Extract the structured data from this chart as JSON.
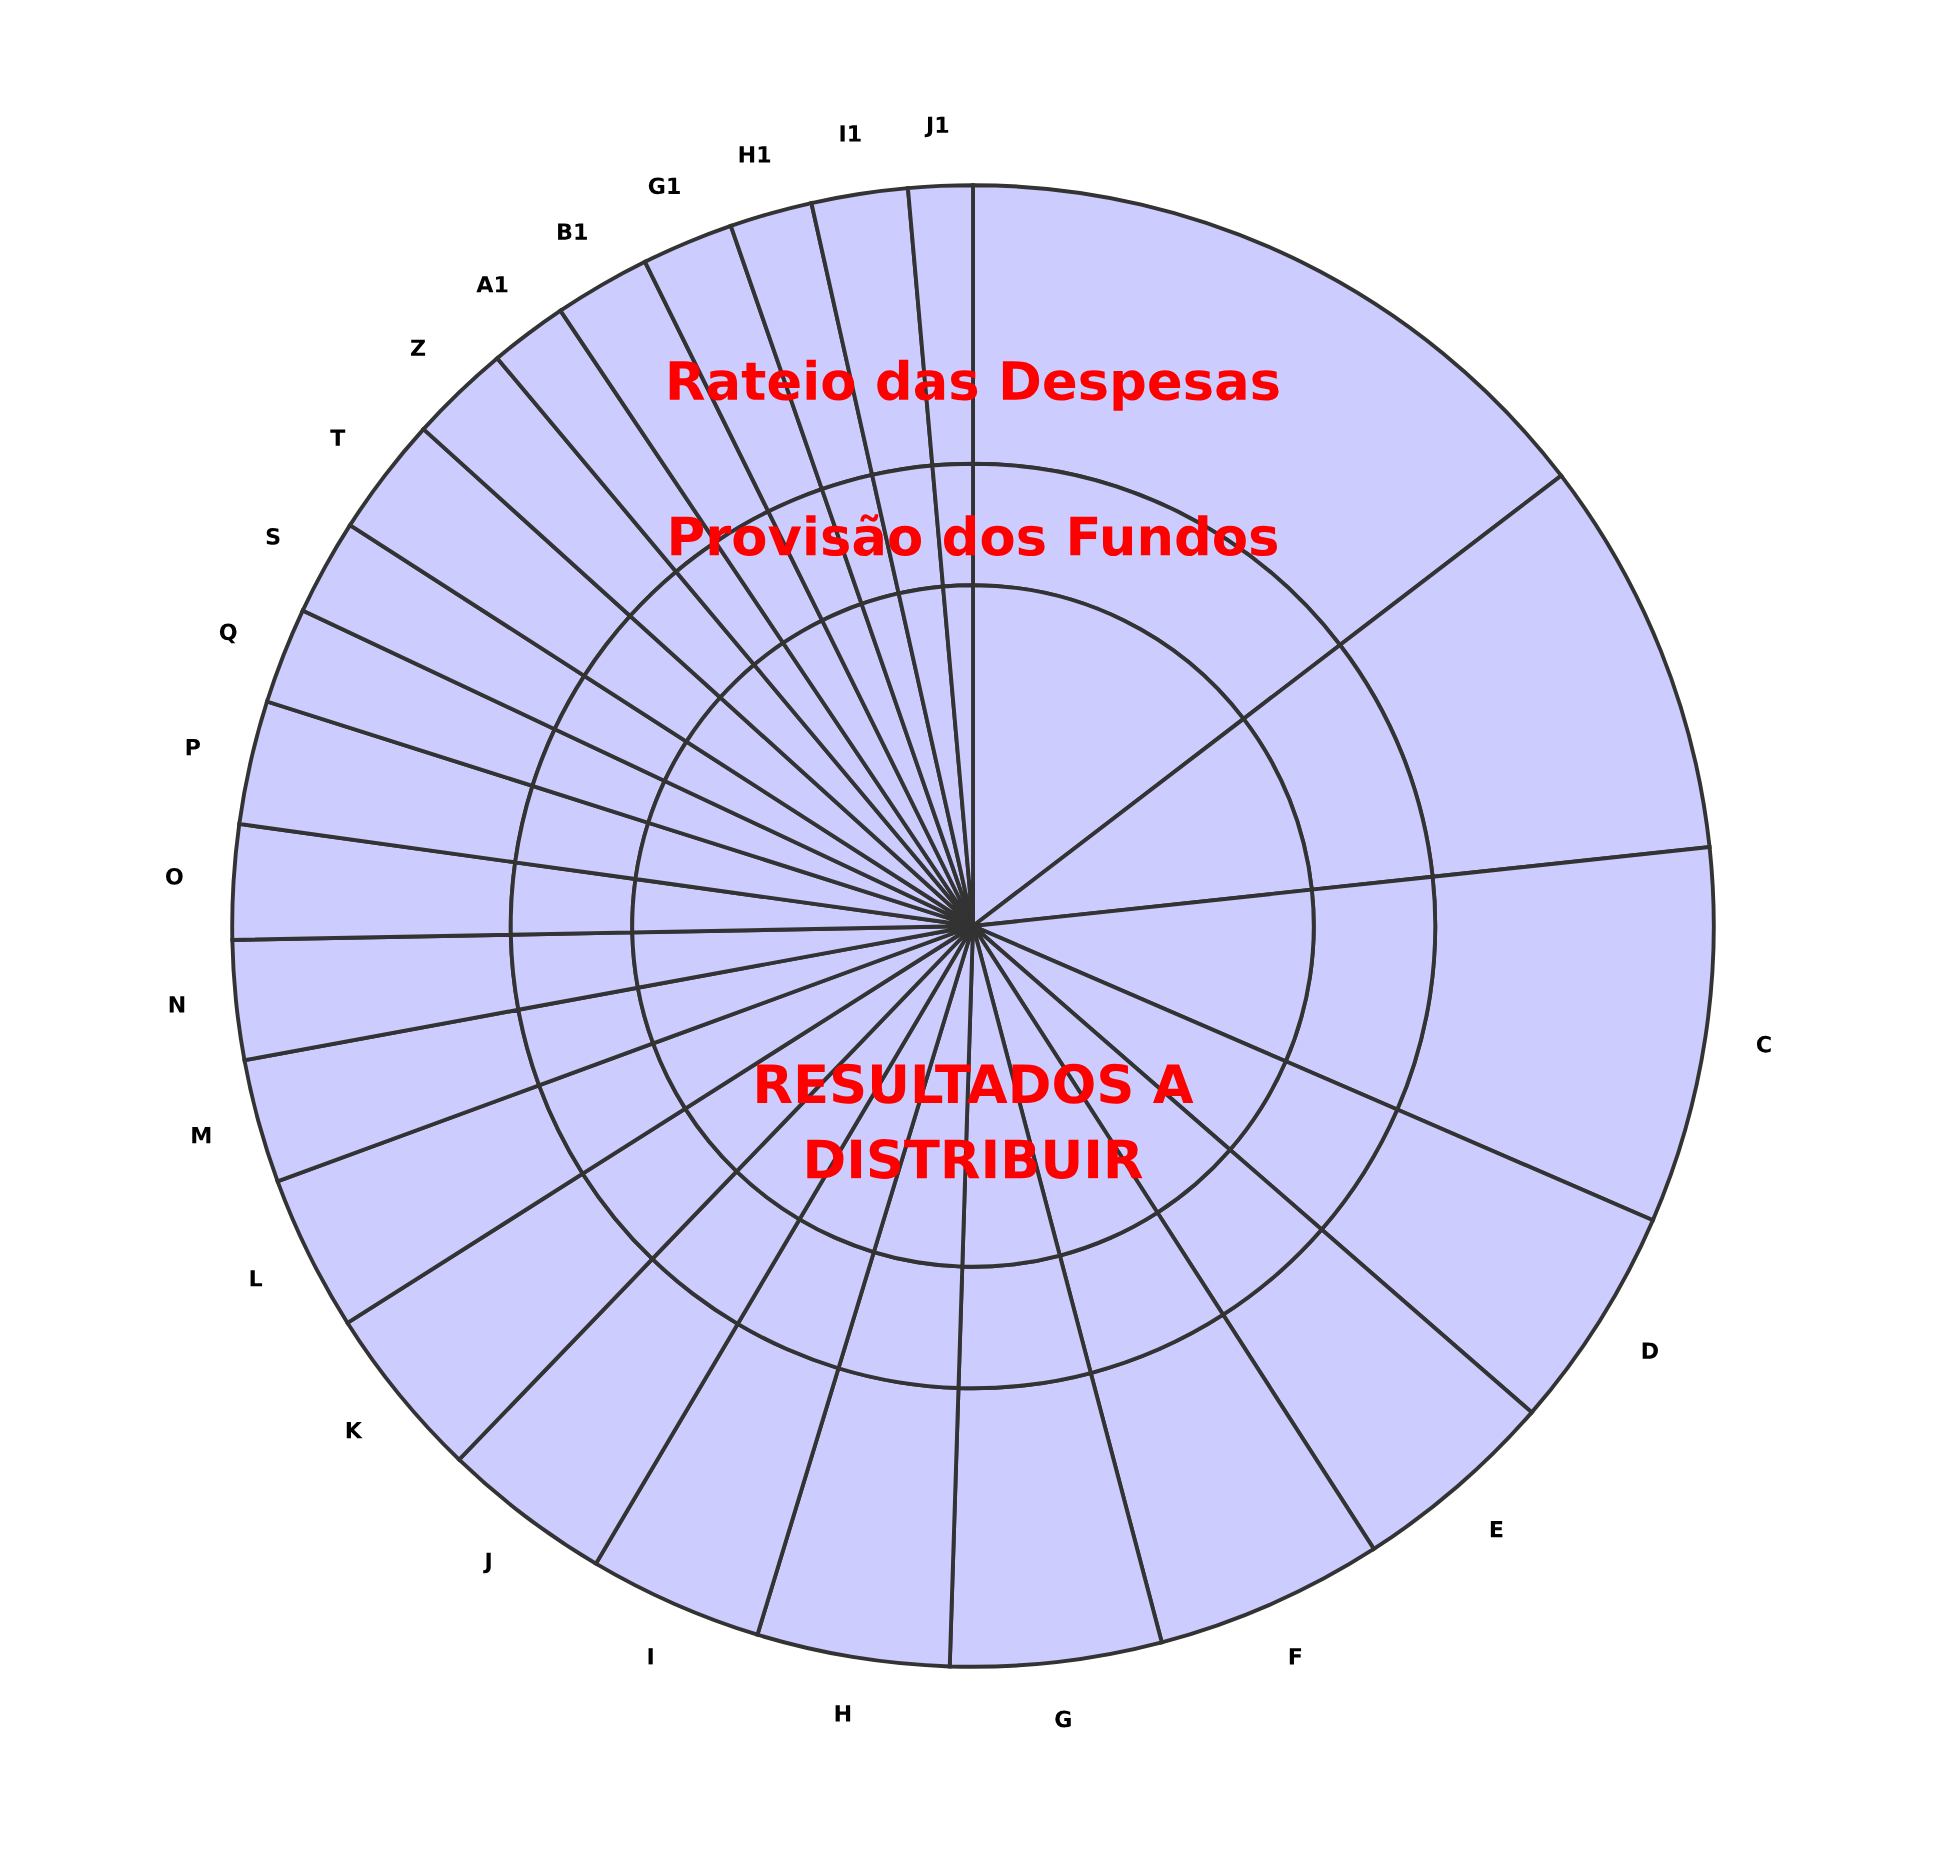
{
  "chart_data": {
    "type": "pie",
    "categories": [
      null,
      null,
      "C",
      "D",
      "E",
      "F",
      "G",
      "H",
      "I",
      "J",
      "K",
      "L",
      "M",
      "N",
      "O",
      "P",
      "Q",
      "S",
      "T",
      "Z",
      "A1",
      "B1",
      "G1",
      "H1",
      "I1",
      "J1"
    ],
    "series": [
      {
        "name": "Rateio das Despesas",
        "color": "#ccccff",
        "values": [
          14.6,
          8.7,
          8.2,
          4.9,
          4.5,
          5.0,
          4.6,
          4.2,
          3.8,
          3.7,
          3.8,
          3.4,
          2.7,
          2.6,
          2.5,
          2.7,
          2.1,
          2.1,
          2.6,
          2.2,
          1.7,
          2.1,
          2.0,
          1.8,
          2.1,
          1.4
        ]
      },
      {
        "name": "Provisão dos Fundos",
        "color": "#ccccff",
        "values": [
          14.6,
          8.7,
          8.2,
          4.9,
          4.5,
          5.0,
          4.6,
          4.2,
          3.8,
          3.7,
          3.8,
          3.4,
          2.7,
          2.6,
          2.5,
          2.7,
          2.1,
          2.1,
          2.6,
          2.2,
          1.7,
          2.1,
          2.0,
          1.8,
          2.1,
          1.4
        ]
      },
      {
        "name": "RESULTADOS A DISTRIBUIR",
        "color": "#ccccff",
        "values": [
          14.6,
          8.7,
          8.2,
          4.9,
          4.5,
          5.0,
          4.6,
          4.2,
          3.8,
          3.7,
          3.8,
          3.4,
          2.7,
          2.6,
          2.5,
          2.7,
          2.1,
          2.1,
          2.6,
          2.2,
          1.7,
          2.1,
          2.0,
          1.8,
          2.1,
          1.4
        ]
      }
    ]
  }
}
